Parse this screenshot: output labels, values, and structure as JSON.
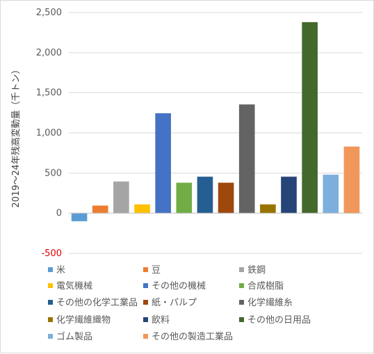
{
  "chart_data": {
    "type": "bar",
    "ylabel": "2019～24年残高変動量（千トン）",
    "ylim": [
      -500,
      2500
    ],
    "yticks": [
      2500,
      2000,
      1500,
      1000,
      500,
      0,
      -500
    ],
    "ytick_labels": [
      "2,500",
      "2,000",
      "1,500",
      "1,000",
      "500",
      "0",
      "-500"
    ],
    "grid": true,
    "legend_position": "bottom",
    "series": [
      {
        "name": "米",
        "value": -100,
        "color": "#5b9bd5"
      },
      {
        "name": "豆",
        "value": 95,
        "color": "#ed7d31"
      },
      {
        "name": "鉄鋼",
        "value": 395,
        "color": "#a5a5a5"
      },
      {
        "name": "電気機械",
        "value": 110,
        "color": "#ffc000"
      },
      {
        "name": "その他の機械",
        "value": 1245,
        "color": "#4472c4"
      },
      {
        "name": "合成樹脂",
        "value": 380,
        "color": "#70ad47"
      },
      {
        "name": "その他の化学工業品",
        "value": 455,
        "color": "#255e91"
      },
      {
        "name": "紙・パルプ",
        "value": 380,
        "color": "#9e480e"
      },
      {
        "name": "化学繊維糸",
        "value": 1355,
        "color": "#636363"
      },
      {
        "name": "化学繊維織物",
        "value": 110,
        "color": "#997300"
      },
      {
        "name": "飲料",
        "value": 455,
        "color": "#264478"
      },
      {
        "name": "その他の日用品",
        "value": 2380,
        "color": "#43682b"
      },
      {
        "name": "ゴム製品",
        "value": 480,
        "color": "#7cafdd"
      },
      {
        "name": "その他の製造工業品",
        "value": 830,
        "color": "#f1975a"
      }
    ]
  }
}
